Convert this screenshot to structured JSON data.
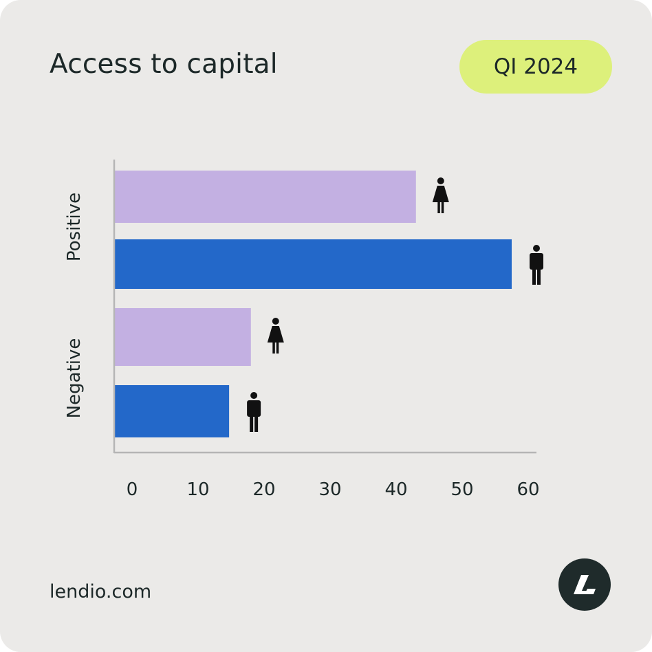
{
  "header": {
    "title": "Access to capital",
    "period": "QI 2024"
  },
  "footer": {
    "url": "lendio.com"
  },
  "colors": {
    "card_background": "#ebeae8",
    "badge": "#ddf07b",
    "women": "#c3b0e2",
    "men": "#2368c9",
    "axis": "#b5b5b5",
    "logo": "#1f2b2b"
  },
  "chart_data": {
    "type": "bar",
    "orientation": "horizontal",
    "title": "",
    "xlabel": "",
    "ylabel": "",
    "categories": [
      "Positive",
      "Negative"
    ],
    "series": [
      {
        "icon": "woman-icon",
        "color": "#c3b0e2",
        "values": [
          43,
          18
        ]
      },
      {
        "icon": "man-icon",
        "color": "#2368c9",
        "values": [
          57.5,
          14.7
        ]
      }
    ],
    "xlim": [
      -2,
      62
    ],
    "xticks": [
      "0",
      "10",
      "20",
      "30",
      "40",
      "50",
      "60"
    ],
    "grid": false,
    "legend": "icons at bar ends"
  }
}
